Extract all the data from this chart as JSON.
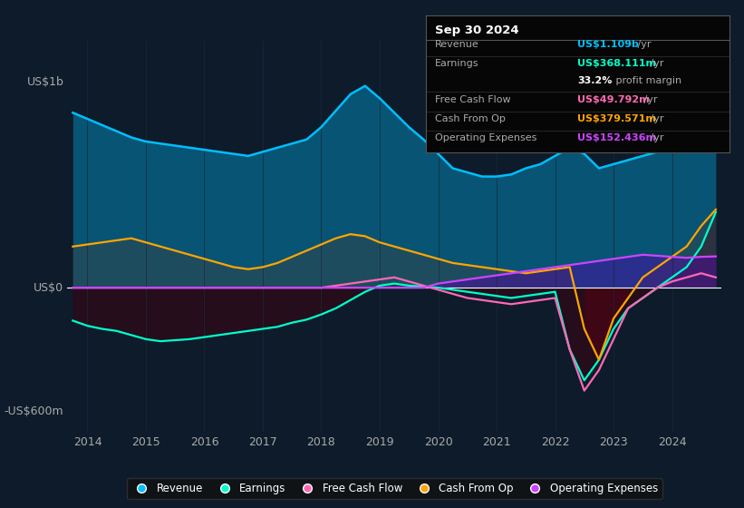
{
  "bg_color": "#0d1b2a",
  "plot_bg_color": "#0d1b2a",
  "info_box": {
    "date": "Sep 30 2024",
    "rows": [
      {
        "label": "Revenue",
        "value": "US$1.109b",
        "value_color": "#00bfff"
      },
      {
        "label": "Earnings",
        "value": "US$368.111m",
        "value_color": "#00ffcc"
      },
      {
        "label": "",
        "value": "33.2% profit margin",
        "value_color": "#ffffff"
      },
      {
        "label": "Free Cash Flow",
        "value": "US$49.792m",
        "value_color": "#ff69b4"
      },
      {
        "label": "Cash From Op",
        "value": "US$379.571m",
        "value_color": "#ffa500"
      },
      {
        "label": "Operating Expenses",
        "value": "US$152.436m",
        "value_color": "#cc44ff"
      }
    ]
  },
  "ylabel_top": "US$1b",
  "ylabel_zero": "US$0",
  "ylabel_bottom": "-US$600m",
  "ylim": [
    -700,
    1200
  ],
  "colors": {
    "revenue": "#00bfff",
    "earnings": "#00ffcc",
    "fcf": "#ff69b4",
    "cashfromop": "#ffa500",
    "opex": "#cc44ff"
  },
  "legend": [
    {
      "label": "Revenue",
      "color": "#00bfff"
    },
    {
      "label": "Earnings",
      "color": "#00ffcc"
    },
    {
      "label": "Free Cash Flow",
      "color": "#ff69b4"
    },
    {
      "label": "Cash From Op",
      "color": "#ffa500"
    },
    {
      "label": "Operating Expenses",
      "color": "#cc44ff"
    }
  ],
  "x_years": [
    2013.75,
    2014.0,
    2014.25,
    2014.5,
    2014.75,
    2015.0,
    2015.25,
    2015.5,
    2015.75,
    2016.0,
    2016.25,
    2016.5,
    2016.75,
    2017.0,
    2017.25,
    2017.5,
    2017.75,
    2018.0,
    2018.25,
    2018.5,
    2018.75,
    2019.0,
    2019.25,
    2019.5,
    2019.75,
    2020.0,
    2020.25,
    2020.5,
    2020.75,
    2021.0,
    2021.25,
    2021.5,
    2021.75,
    2022.0,
    2022.25,
    2022.5,
    2022.75,
    2023.0,
    2023.25,
    2023.5,
    2023.75,
    2024.0,
    2024.25,
    2024.5,
    2024.75
  ],
  "revenue": [
    850,
    820,
    790,
    760,
    730,
    710,
    700,
    690,
    680,
    670,
    660,
    650,
    640,
    660,
    680,
    700,
    720,
    780,
    860,
    940,
    980,
    920,
    850,
    780,
    720,
    650,
    580,
    560,
    540,
    540,
    550,
    580,
    600,
    640,
    680,
    650,
    580,
    600,
    620,
    640,
    660,
    680,
    750,
    900,
    1109
  ],
  "earnings": [
    -160,
    -185,
    -200,
    -210,
    -230,
    -250,
    -260,
    -255,
    -250,
    -240,
    -230,
    -220,
    -210,
    -200,
    -190,
    -170,
    -155,
    -130,
    -100,
    -60,
    -20,
    10,
    20,
    10,
    5,
    0,
    -10,
    -20,
    -30,
    -40,
    -50,
    -40,
    -30,
    -20,
    -300,
    -450,
    -350,
    -200,
    -100,
    -50,
    0,
    50,
    100,
    200,
    368
  ],
  "fcf": [
    0,
    0,
    0,
    0,
    0,
    0,
    0,
    0,
    0,
    0,
    0,
    0,
    0,
    0,
    0,
    0,
    0,
    0,
    10,
    20,
    30,
    40,
    50,
    30,
    10,
    -10,
    -30,
    -50,
    -60,
    -70,
    -80,
    -70,
    -60,
    -50,
    -300,
    -500,
    -400,
    -250,
    -100,
    -50,
    0,
    30,
    50,
    70,
    50
  ],
  "cashfromop": [
    200,
    210,
    220,
    230,
    240,
    220,
    200,
    180,
    160,
    140,
    120,
    100,
    90,
    100,
    120,
    150,
    180,
    210,
    240,
    260,
    250,
    220,
    200,
    180,
    160,
    140,
    120,
    110,
    100,
    90,
    80,
    70,
    80,
    90,
    100,
    -200,
    -350,
    -150,
    -50,
    50,
    100,
    150,
    200,
    300,
    380
  ],
  "opex": [
    0,
    0,
    0,
    0,
    0,
    0,
    0,
    0,
    0,
    0,
    0,
    0,
    0,
    0,
    0,
    0,
    0,
    0,
    0,
    0,
    0,
    0,
    0,
    0,
    0,
    20,
    30,
    40,
    50,
    60,
    70,
    80,
    90,
    100,
    110,
    120,
    130,
    140,
    150,
    160,
    155,
    150,
    145,
    150,
    152
  ]
}
